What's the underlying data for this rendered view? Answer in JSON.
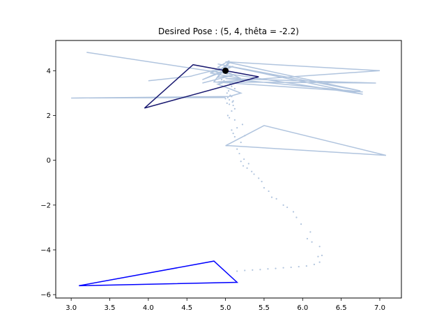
{
  "chart_data": {
    "type": "line",
    "title": "Desired Pose : (5, 4, thêta = -2.2)",
    "xlabel": "",
    "ylabel": "",
    "xlim": [
      2.8,
      7.28
    ],
    "ylim": [
      -6.15,
      5.35
    ],
    "xticks": [
      3.0,
      3.5,
      4.0,
      4.5,
      5.0,
      5.5,
      6.0,
      6.5,
      7.0
    ],
    "xtick_labels": [
      "3.0",
      "3.5",
      "4.0",
      "4.5",
      "5.0",
      "5.5",
      "6.0",
      "6.5",
      "7.0"
    ],
    "yticks": [
      -6,
      -4,
      -2,
      0,
      2,
      4
    ],
    "ytick_labels": [
      "−6",
      "−4",
      "−2",
      "0",
      "2",
      "4"
    ],
    "grid": false,
    "colors": {
      "trail": "#b0c4de",
      "start_triangle": "#0000ff",
      "final_triangle": "#191970",
      "target": "#000000"
    },
    "target_point": {
      "x": 5.0,
      "y": 4.0
    },
    "start_triangle": {
      "x": [
        3.1,
        4.85,
        5.15,
        3.1
      ],
      "y": [
        -5.6,
        -4.5,
        -5.45,
        -5.6
      ]
    },
    "final_triangle": {
      "x": [
        3.95,
        4.58,
        5.43,
        3.95
      ],
      "y": [
        2.33,
        4.27,
        3.73,
        2.33
      ]
    },
    "trail_points": {
      "x": [
        5.15,
        5.25,
        5.35,
        5.45,
        5.55,
        5.65,
        5.75,
        5.85,
        5.95,
        6.05,
        6.15,
        6.22,
        6.2,
        6.25,
        6.22,
        6.12,
        6.1,
        6.06,
        5.98,
        5.92,
        5.88,
        5.8,
        5.75,
        5.66,
        5.6,
        5.56,
        5.5,
        5.47,
        5.43,
        5.37,
        5.34,
        5.28,
        5.23,
        5.3,
        5.2,
        5.24,
        5.18,
        5.15,
        5.2,
        5.12,
        5.1,
        5.08,
        5.25,
        5.15,
        5.22,
        5.12,
        5.05,
        5.03,
        5.08,
        5.12,
        5.1,
        5.05,
        5.02,
        5.09,
        5.05,
        5.0,
        5.03,
        5.06,
        5.1,
        5.02,
        5.08,
        5.04,
        5.12,
        5.08,
        5.06,
        5.04,
        4.98,
        4.95,
        4.97,
        5.0,
        5.02,
        5.0
      ],
      "y": [
        -4.95,
        -4.92,
        -4.9,
        -4.88,
        -4.85,
        -4.83,
        -4.8,
        -4.78,
        -4.75,
        -4.72,
        -4.65,
        -4.55,
        -4.3,
        -4.25,
        -3.85,
        -3.65,
        -3.2,
        -3.5,
        -2.85,
        -2.55,
        -2.3,
        -2.1,
        -2.0,
        -1.72,
        -1.65,
        -1.38,
        -1.23,
        -0.95,
        -0.8,
        -0.62,
        -0.5,
        -0.35,
        -0.25,
        -0.15,
        -0.05,
        0.05,
        0.3,
        0.5,
        0.8,
        1.05,
        1.2,
        1.35,
        1.1,
        1.45,
        1.6,
        1.8,
        1.9,
        2.0,
        2.2,
        2.3,
        2.45,
        2.5,
        2.55,
        2.6,
        2.7,
        2.75,
        2.8,
        2.9,
        2.65,
        3.0,
        2.85,
        3.1,
        3.2,
        3.3,
        3.4,
        3.5,
        3.55,
        3.6,
        3.7,
        3.75,
        3.85,
        3.9
      ]
    },
    "trail_polylines": [
      {
        "x": [
          5.0,
          5.5,
          7.08,
          5.05,
          5.0
        ],
        "y": [
          0.65,
          1.55,
          0.22,
          0.65,
          0.65
        ]
      },
      {
        "x": [
          5.0,
          3.0,
          5.05,
          5.2,
          4.9,
          5.0
        ],
        "y": [
          2.8,
          2.78,
          2.85,
          3.0,
          3.4,
          3.5
        ]
      },
      {
        "x": [
          3.2,
          6.78,
          4.9,
          6.75,
          5.0,
          7.0,
          4.9,
          6.95,
          5.0,
          6.78,
          4.85,
          5.05,
          4.9,
          5.2,
          4.8,
          5.1,
          4.7,
          5.0
        ],
        "y": [
          4.82,
          2.95,
          4.3,
          3.1,
          4.4,
          4.0,
          3.5,
          3.45,
          3.65,
          3.05,
          3.5,
          4.45,
          4.15,
          3.65,
          3.9,
          4.2,
          3.6,
          4.0
        ]
      },
      {
        "x": [
          4.0,
          4.55,
          4.6,
          4.95,
          5.05,
          4.9,
          5.1,
          4.7
        ],
        "y": [
          3.55,
          3.75,
          3.8,
          4.1,
          4.35,
          3.7,
          3.8,
          3.45
        ]
      }
    ]
  }
}
